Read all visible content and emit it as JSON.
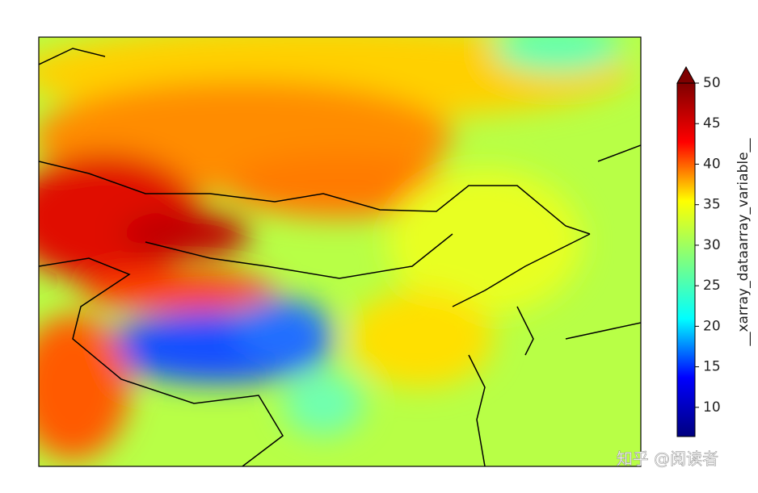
{
  "colorbar": {
    "label": "__xarray_dataarray_variable__",
    "clim": [
      6.4,
      50
    ],
    "ticks": [
      10,
      15,
      20,
      25,
      30,
      35,
      40,
      45,
      50
    ],
    "extend": "max",
    "colormap": [
      "#00007f",
      "#0000ff",
      "#00ffff",
      "#7fff7f",
      "#ffff00",
      "#ff0000",
      "#7f0000"
    ]
  },
  "watermark": "知乎 @阅读者"
}
